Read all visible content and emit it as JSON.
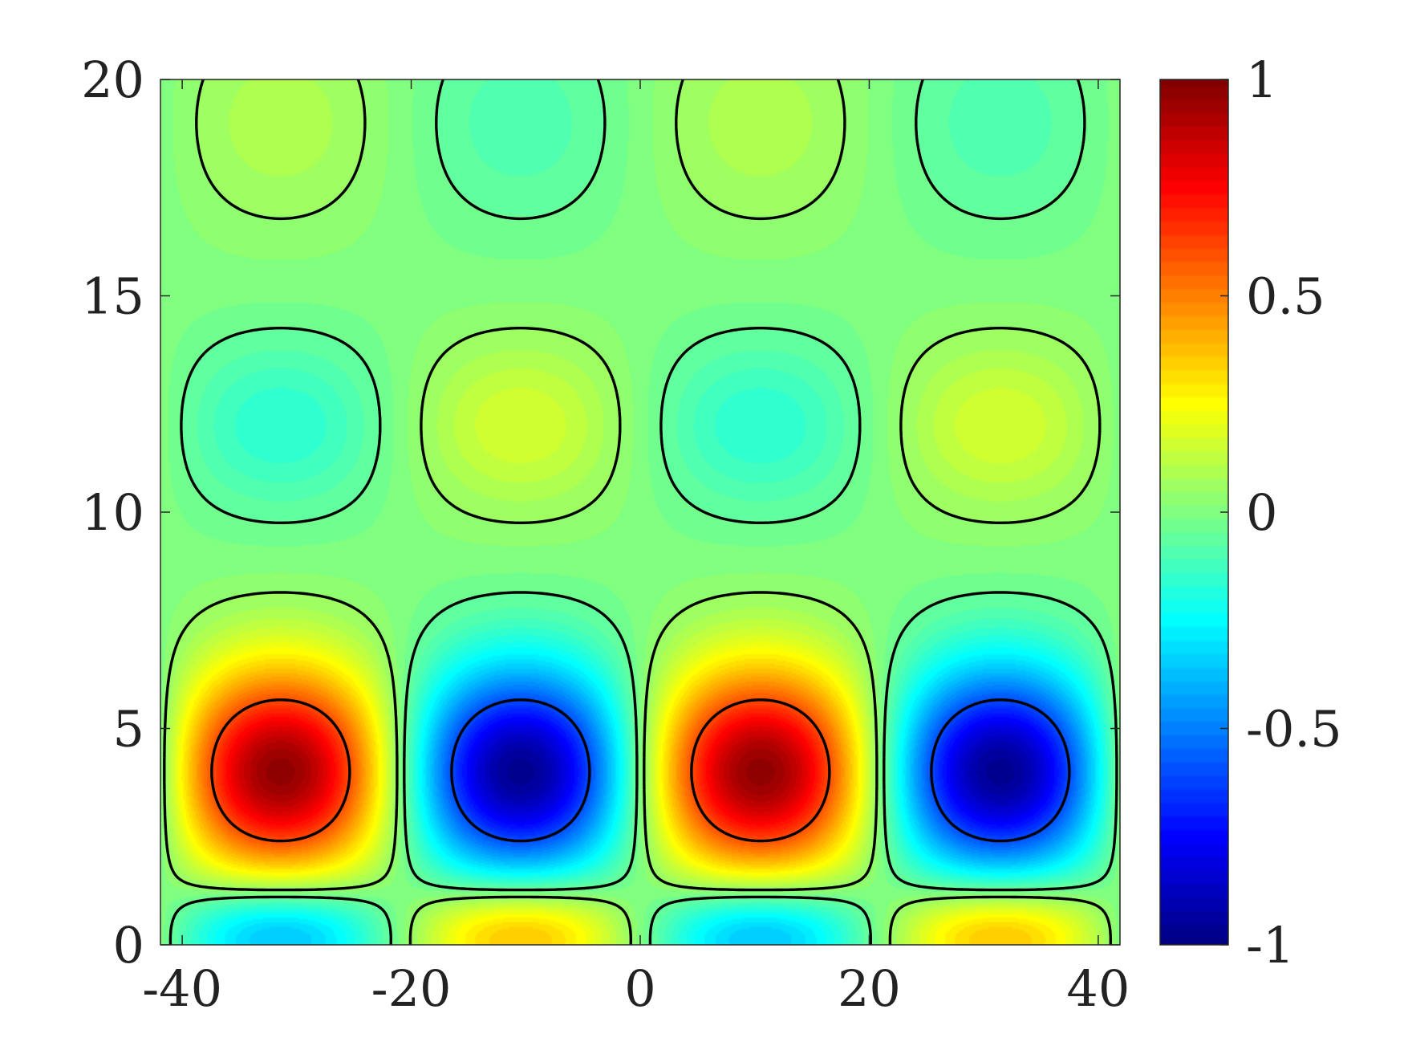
{
  "chart_data": {
    "type": "heatmap",
    "title": "",
    "xlabel": "",
    "ylabel": "",
    "xlim": [
      -41.9,
      41.9
    ],
    "ylim": [
      0,
      20
    ],
    "x_ticks": [
      -40,
      -20,
      0,
      20,
      40
    ],
    "x_tick_labels": [
      "-40",
      "-20",
      "0",
      "20",
      "40"
    ],
    "y_ticks": [
      0,
      5,
      10,
      15,
      20
    ],
    "y_tick_labels": [
      "0",
      "5",
      "10",
      "15",
      "20"
    ],
    "colormap": "jet",
    "grid": false,
    "field": {
      "description_of_pattern": "cos(2*pi*x/41.9) modulated in depth with alternating lobes",
      "period_x": 41.9,
      "value_range": [
        -1,
        1
      ]
    },
    "colorbar": {
      "range": [
        -1,
        1
      ],
      "ticks": [
        -1,
        -0.5,
        0,
        0.5,
        1
      ],
      "tick_labels": [
        "-1",
        "-0.5",
        "0",
        "0.5",
        "1"
      ],
      "placement": "right"
    },
    "contours": {
      "positive_style": "solid",
      "negative_style": "dashed",
      "color": "#000000"
    }
  }
}
